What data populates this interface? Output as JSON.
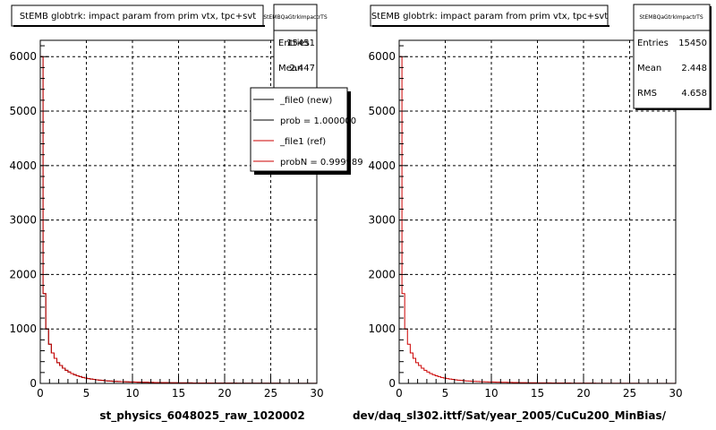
{
  "chart_data": [
    {
      "type": "histogram",
      "title": "StEMB globtrk: impact param from prim vtx, tpc+svt",
      "xlabel": "st_physics_6048025_raw_1020002",
      "xlim": [
        0,
        30
      ],
      "ylim": [
        0,
        6300
      ],
      "xticks": [
        "0",
        "5",
        "10",
        "15",
        "20",
        "25",
        "30"
      ],
      "yticks": [
        "0",
        "1000",
        "2000",
        "3000",
        "4000",
        "5000",
        "6000"
      ],
      "grid": true,
      "stats": {
        "name": "StEMBQaGtrkImpactrTS",
        "rows": [
          {
            "label": "Entries",
            "value": "15451"
          },
          {
            "label": "Mean",
            "value": "2.447"
          }
        ]
      },
      "legend": {
        "placement": "top-right",
        "entries": [
          {
            "label": "_file0 (new)",
            "color": "#000000"
          },
          {
            "label": "prob = 1.000000",
            "color": "#000000"
          },
          {
            "label": "_file1 (ref)",
            "color": "#cc0000"
          },
          {
            "label": "probN = 0.999989",
            "color": "#cc0000"
          }
        ]
      },
      "series": [
        {
          "color": "#000000",
          "bin_width": 0.3,
          "values": [
            6000,
            1650,
            1000,
            720,
            560,
            460,
            380,
            330,
            280,
            240,
            210,
            180,
            160,
            140,
            125,
            110,
            98,
            88,
            80,
            73,
            66,
            60,
            55,
            50,
            46,
            43,
            40,
            37,
            35,
            33,
            31,
            29,
            27,
            26,
            24,
            23,
            22,
            21,
            20,
            19,
            18,
            17,
            16,
            15,
            15,
            14,
            13,
            13,
            12,
            12,
            11,
            11,
            10,
            10,
            10,
            9,
            9,
            9,
            8,
            8,
            8,
            8,
            7,
            7,
            7,
            7,
            6,
            6,
            6,
            6,
            6,
            5,
            5,
            5,
            5,
            5,
            5,
            5,
            4,
            4,
            4,
            4,
            4,
            4,
            4,
            4,
            4,
            3,
            3,
            3,
            3,
            3,
            3,
            3,
            3,
            3,
            3,
            3,
            3,
            3
          ]
        },
        {
          "color": "#cc0000",
          "bin_width": 0.3,
          "values": [
            6000,
            1650,
            1000,
            720,
            560,
            460,
            380,
            330,
            280,
            240,
            210,
            180,
            160,
            140,
            125,
            110,
            98,
            88,
            80,
            73,
            66,
            60,
            55,
            50,
            46,
            43,
            40,
            37,
            35,
            33,
            31,
            29,
            27,
            26,
            24,
            23,
            22,
            21,
            20,
            19,
            18,
            17,
            16,
            15,
            15,
            14,
            13,
            13,
            12,
            12,
            11,
            11,
            10,
            10,
            10,
            9,
            9,
            9,
            8,
            8,
            8,
            8,
            7,
            7,
            7,
            7,
            6,
            6,
            6,
            6,
            6,
            5,
            5,
            5,
            5,
            5,
            5,
            5,
            4,
            4,
            4,
            4,
            4,
            4,
            4,
            4,
            4,
            3,
            3,
            3,
            3,
            3,
            3,
            3,
            3,
            3,
            3,
            3,
            3,
            3
          ]
        }
      ]
    },
    {
      "type": "histogram",
      "title": "StEMB globtrk: impact param from prim vtx, tpc+svt",
      "xlabel": "dev/daq_sl302.ittf/Sat/year_2005/CuCu200_MinBias/",
      "xlim": [
        0,
        30
      ],
      "ylim": [
        0,
        6300
      ],
      "xticks": [
        "0",
        "5",
        "10",
        "15",
        "20",
        "25",
        "30"
      ],
      "yticks": [
        "0",
        "1000",
        "2000",
        "3000",
        "4000",
        "5000",
        "6000"
      ],
      "grid": true,
      "stats": {
        "name": "StEMBQaGtrkImpactrTS",
        "rows": [
          {
            "label": "Entries",
            "value": "15450"
          },
          {
            "label": "Mean",
            "value": "2.448"
          },
          {
            "label": "RMS",
            "value": "4.658"
          }
        ]
      },
      "series": [
        {
          "color": "#cc0000",
          "bin_width": 0.3,
          "values": [
            6000,
            1650,
            1000,
            720,
            560,
            460,
            380,
            330,
            280,
            240,
            210,
            180,
            160,
            140,
            125,
            110,
            98,
            88,
            80,
            73,
            66,
            60,
            55,
            50,
            46,
            43,
            40,
            37,
            35,
            33,
            31,
            29,
            27,
            26,
            24,
            23,
            22,
            21,
            20,
            19,
            18,
            17,
            16,
            15,
            15,
            14,
            13,
            13,
            12,
            12,
            11,
            11,
            10,
            10,
            10,
            9,
            9,
            9,
            8,
            8,
            8,
            8,
            7,
            7,
            7,
            7,
            6,
            6,
            6,
            6,
            6,
            5,
            5,
            5,
            5,
            5,
            5,
            5,
            4,
            4,
            4,
            4,
            4,
            4,
            4,
            4,
            4,
            3,
            3,
            3,
            3,
            3,
            3,
            3,
            3,
            3,
            3,
            3,
            3,
            3
          ]
        }
      ]
    }
  ]
}
